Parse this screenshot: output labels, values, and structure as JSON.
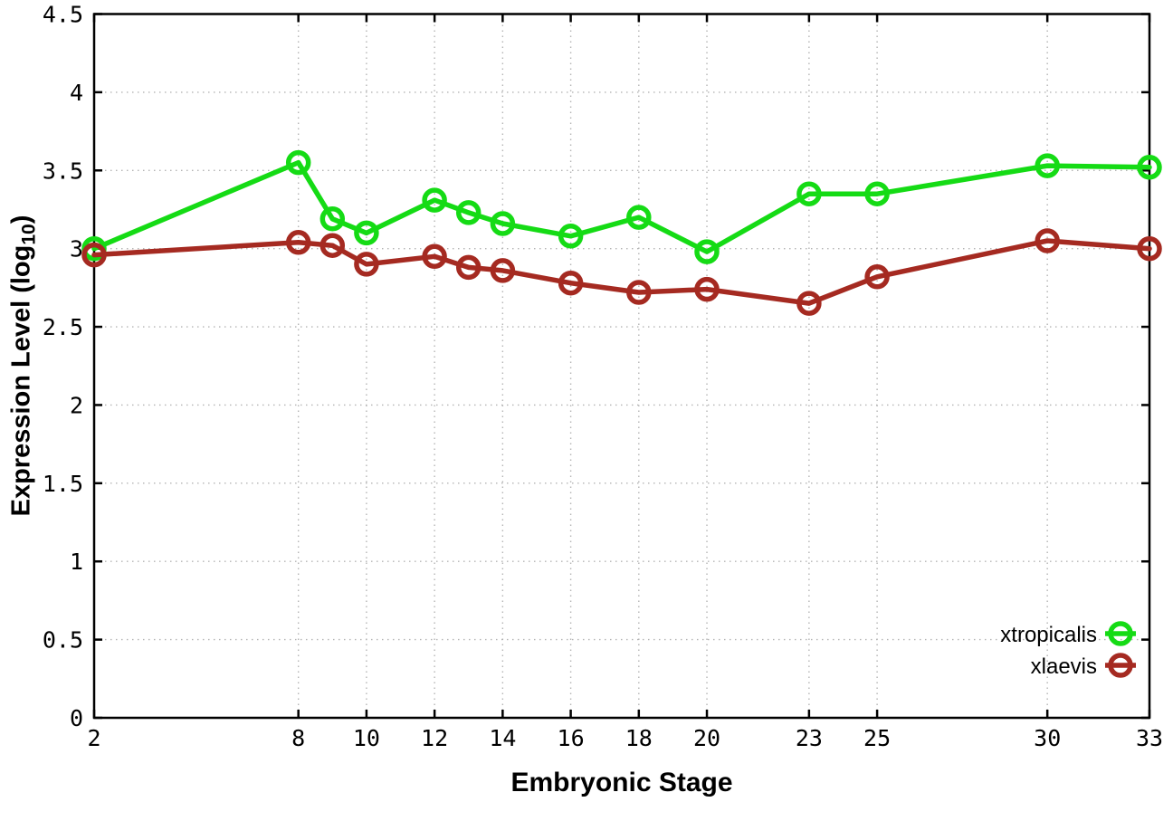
{
  "chart_data": {
    "type": "line",
    "title": "",
    "xlabel": "Embryonic Stage",
    "ylabel": "Expression Level (log10)",
    "ylabel_parts": {
      "pre": "Expression Level (log",
      "sub": "10",
      "post": ")"
    },
    "x": [
      2,
      8,
      9,
      10,
      12,
      13,
      14,
      16,
      18,
      20,
      23,
      25,
      30,
      33
    ],
    "series": [
      {
        "name": "xtropicalis",
        "color": "#15db15",
        "values": [
          3.0,
          3.55,
          3.19,
          3.1,
          3.31,
          3.23,
          3.16,
          3.08,
          3.2,
          2.98,
          3.35,
          3.35,
          3.53,
          3.52
        ]
      },
      {
        "name": "xlaevis",
        "color": "#a52a21",
        "values": [
          2.96,
          3.04,
          3.02,
          2.9,
          2.95,
          2.88,
          2.86,
          2.78,
          2.72,
          2.74,
          2.65,
          2.82,
          3.05,
          3.0
        ]
      }
    ],
    "xlim": [
      2,
      33
    ],
    "ylim": [
      0,
      4.5
    ],
    "xticks": [
      2,
      8,
      10,
      12,
      14,
      16,
      18,
      20,
      23,
      25,
      30,
      33
    ],
    "xtick_labels": [
      "2",
      "8",
      "10",
      "12",
      "14",
      "16",
      "18",
      "20",
      "23",
      "25",
      "30",
      "33"
    ],
    "yticks": [
      0,
      0.5,
      1,
      1.5,
      2,
      2.5,
      3,
      3.5,
      4,
      4.5
    ],
    "ytick_labels": [
      "0",
      "0.5",
      "1",
      "1.5",
      "2",
      "2.5",
      "3",
      "3.5",
      "4",
      "4.5"
    ],
    "grid": true,
    "legend_position": "bottom-right",
    "marker": "open-circle",
    "background_color": "#ffffff",
    "axis_color": "#000000",
    "grid_color": "#b4b4b4"
  }
}
